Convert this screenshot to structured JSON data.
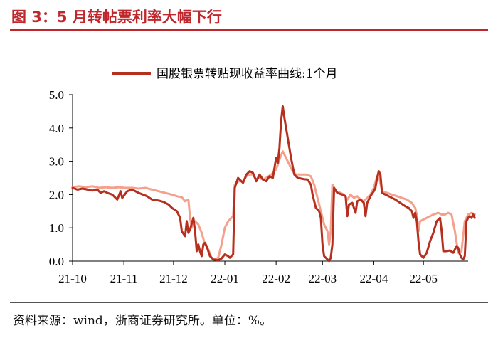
{
  "header": {
    "title": "图 3：5 月转帖票利率大幅下行"
  },
  "footer": {
    "source": "资料来源：wind，浙商证券研究所。单位：%。"
  },
  "chart_data": {
    "type": "line",
    "title": "图 3：5 月转帖票利率大幅下行",
    "xlabel": "",
    "ylabel": "",
    "ylim": [
      0,
      5
    ],
    "yticks": [
      "0.0",
      "1.0",
      "2.0",
      "3.0",
      "4.0",
      "5.0"
    ],
    "xticks": [
      {
        "label": "21-10",
        "t": 0
      },
      {
        "label": "21-11",
        "t": 31
      },
      {
        "label": "21-12",
        "t": 61
      },
      {
        "label": "22-01",
        "t": 92
      },
      {
        "label": "22-02",
        "t": 123
      },
      {
        "label": "22-03",
        "t": 151
      },
      {
        "label": "22-04",
        "t": 182
      },
      {
        "label": "22-05",
        "t": 212
      }
    ],
    "xlim": [
      0,
      239
    ],
    "grid": false,
    "legend_position": "top",
    "series": [
      {
        "name": "国股银票转贴现收益率曲线:1个月",
        "color": "#b5301e",
        "width": 3,
        "points": [
          [
            0,
            2.2
          ],
          [
            3,
            2.15
          ],
          [
            6,
            2.18
          ],
          [
            9,
            2.15
          ],
          [
            12,
            2.12
          ],
          [
            15,
            2.15
          ],
          [
            17,
            2.05
          ],
          [
            19,
            2.1
          ],
          [
            21,
            2.05
          ],
          [
            24,
            2.0
          ],
          [
            27,
            1.85
          ],
          [
            29,
            2.1
          ],
          [
            30,
            1.9
          ],
          [
            33,
            2.1
          ],
          [
            36,
            2.15
          ],
          [
            40,
            2.05
          ],
          [
            45,
            1.95
          ],
          [
            48,
            1.85
          ],
          [
            52,
            1.82
          ],
          [
            55,
            1.78
          ],
          [
            58,
            1.7
          ],
          [
            60,
            1.6
          ],
          [
            63,
            1.5
          ],
          [
            65,
            1.3
          ],
          [
            66,
            0.9
          ],
          [
            68,
            0.75
          ],
          [
            69,
            1.2
          ],
          [
            70,
            0.85
          ],
          [
            71,
            0.95
          ],
          [
            73,
            1.3
          ],
          [
            74,
            0.9
          ],
          [
            75,
            0.3
          ],
          [
            76,
            0.5
          ],
          [
            77,
            0.3
          ],
          [
            78,
            0.15
          ],
          [
            79,
            0.5
          ],
          [
            80,
            0.55
          ],
          [
            81,
            0.45
          ],
          [
            83,
            0.15
          ],
          [
            85,
            0.05
          ],
          [
            88,
            0.03
          ],
          [
            90,
            0.08
          ],
          [
            92,
            0.2
          ],
          [
            94,
            0.15
          ],
          [
            95,
            0.1
          ],
          [
            97,
            0.2
          ],
          [
            98,
            2.2
          ],
          [
            100,
            2.5
          ],
          [
            103,
            2.35
          ],
          [
            105,
            2.6
          ],
          [
            107,
            2.7
          ],
          [
            109,
            2.65
          ],
          [
            111,
            2.4
          ],
          [
            113,
            2.6
          ],
          [
            115,
            2.45
          ],
          [
            117,
            2.4
          ],
          [
            119,
            2.55
          ],
          [
            121,
            2.5
          ],
          [
            123,
            3.1
          ],
          [
            124,
            2.95
          ],
          [
            125,
            3.4
          ],
          [
            126,
            4.2
          ],
          [
            127,
            4.65
          ],
          [
            128,
            4.3
          ],
          [
            130,
            3.7
          ],
          [
            132,
            3.1
          ],
          [
            134,
            2.6
          ],
          [
            136,
            2.5
          ],
          [
            138,
            2.48
          ],
          [
            140,
            2.46
          ],
          [
            142,
            2.45
          ],
          [
            144,
            2.3
          ],
          [
            145,
            2.0
          ],
          [
            147,
            1.6
          ],
          [
            149,
            1.5
          ],
          [
            150,
            1.3
          ],
          [
            151,
            0.5
          ],
          [
            152,
            0.15
          ],
          [
            154,
            0.05
          ],
          [
            155,
            0.0
          ],
          [
            156,
            0.1
          ],
          [
            157,
            0.5
          ],
          [
            158,
            2.2
          ],
          [
            160,
            2.05
          ],
          [
            163,
            2.0
          ],
          [
            165,
            1.95
          ],
          [
            166,
            1.35
          ],
          [
            167,
            1.7
          ],
          [
            169,
            1.75
          ],
          [
            171,
            1.45
          ],
          [
            172,
            1.8
          ],
          [
            174,
            1.85
          ],
          [
            176,
            1.75
          ],
          [
            177,
            1.35
          ],
          [
            178,
            1.75
          ],
          [
            180,
            1.95
          ],
          [
            182,
            2.1
          ],
          [
            183,
            2.2
          ],
          [
            184,
            2.5
          ],
          [
            185,
            2.7
          ],
          [
            186,
            2.6
          ],
          [
            187,
            2.05
          ],
          [
            189,
            2.0
          ],
          [
            191,
            1.95
          ],
          [
            193,
            1.9
          ],
          [
            195,
            1.85
          ],
          [
            198,
            1.75
          ],
          [
            201,
            1.65
          ],
          [
            203,
            1.6
          ],
          [
            205,
            1.5
          ],
          [
            206,
            1.3
          ],
          [
            207,
            1.45
          ],
          [
            208,
            1.2
          ],
          [
            209,
            0.6
          ],
          [
            210,
            0.2
          ],
          [
            212,
            0.1
          ],
          [
            214,
            0.25
          ],
          [
            216,
            0.6
          ],
          [
            218,
            0.85
          ],
          [
            220,
            1.2
          ],
          [
            222,
            1.3
          ],
          [
            223,
            0.9
          ],
          [
            224,
            0.3
          ],
          [
            226,
            0.3
          ],
          [
            228,
            0.32
          ],
          [
            230,
            0.25
          ],
          [
            232,
            0.45
          ],
          [
            233,
            0.4
          ],
          [
            234,
            0.2
          ],
          [
            235,
            0.1
          ],
          [
            236,
            0.05
          ],
          [
            237,
            0.15
          ],
          [
            238,
            1.2
          ],
          [
            239,
            1.3
          ],
          [
            240,
            1.35
          ],
          [
            241,
            1.3
          ],
          [
            242,
            1.4
          ],
          [
            243,
            1.3
          ]
        ]
      },
      {
        "name": "",
        "color": "#f4a08c",
        "width": 3,
        "points": [
          [
            0,
            2.22
          ],
          [
            4,
            2.25
          ],
          [
            8,
            2.22
          ],
          [
            12,
            2.25
          ],
          [
            16,
            2.2
          ],
          [
            20,
            2.22
          ],
          [
            24,
            2.2
          ],
          [
            28,
            2.22
          ],
          [
            32,
            2.2
          ],
          [
            36,
            2.2
          ],
          [
            40,
            2.18
          ],
          [
            44,
            2.2
          ],
          [
            48,
            2.15
          ],
          [
            52,
            2.1
          ],
          [
            56,
            2.05
          ],
          [
            60,
            2.0
          ],
          [
            63,
            1.95
          ],
          [
            66,
            1.92
          ],
          [
            68,
            1.8
          ],
          [
            70,
            1.85
          ],
          [
            71,
            1.3
          ],
          [
            72,
            1.0
          ],
          [
            74,
            1.2
          ],
          [
            76,
            1.1
          ],
          [
            78,
            0.85
          ],
          [
            80,
            0.5
          ],
          [
            82,
            0.35
          ],
          [
            84,
            0.1
          ],
          [
            86,
            0.05
          ],
          [
            88,
            0.1
          ],
          [
            90,
            0.5
          ],
          [
            92,
            1.0
          ],
          [
            94,
            1.2
          ],
          [
            96,
            1.3
          ],
          [
            97,
            1.35
          ],
          [
            98,
            2.3
          ],
          [
            100,
            2.4
          ],
          [
            103,
            2.4
          ],
          [
            105,
            2.55
          ],
          [
            107,
            2.6
          ],
          [
            109,
            2.6
          ],
          [
            111,
            2.45
          ],
          [
            113,
            2.5
          ],
          [
            115,
            2.45
          ],
          [
            117,
            2.5
          ],
          [
            120,
            2.6
          ],
          [
            123,
            2.75
          ],
          [
            125,
            3.05
          ],
          [
            127,
            3.3
          ],
          [
            129,
            3.1
          ],
          [
            131,
            2.9
          ],
          [
            133,
            2.7
          ],
          [
            135,
            2.6
          ],
          [
            138,
            2.6
          ],
          [
            141,
            2.6
          ],
          [
            144,
            2.55
          ],
          [
            146,
            2.3
          ],
          [
            148,
            1.9
          ],
          [
            150,
            1.5
          ],
          [
            152,
            1.1
          ],
          [
            154,
            0.9
          ],
          [
            155,
            0.5
          ],
          [
            156,
            0.9
          ],
          [
            157,
            2.3
          ],
          [
            159,
            2.1
          ],
          [
            162,
            2.05
          ],
          [
            164,
            2.0
          ],
          [
            166,
            1.85
          ],
          [
            168,
            2.0
          ],
          [
            170,
            1.9
          ],
          [
            172,
            1.95
          ],
          [
            174,
            1.85
          ],
          [
            176,
            1.8
          ],
          [
            178,
            1.9
          ],
          [
            180,
            2.0
          ],
          [
            182,
            2.2
          ],
          [
            184,
            2.55
          ],
          [
            185,
            2.6
          ],
          [
            187,
            2.1
          ],
          [
            190,
            2.05
          ],
          [
            193,
            2.0
          ],
          [
            196,
            1.95
          ],
          [
            199,
            1.9
          ],
          [
            202,
            1.85
          ],
          [
            205,
            1.75
          ],
          [
            207,
            1.6
          ],
          [
            208,
            1.4
          ],
          [
            209,
            0.9
          ],
          [
            210,
            1.2
          ],
          [
            212,
            1.25
          ],
          [
            214,
            1.3
          ],
          [
            216,
            1.35
          ],
          [
            218,
            1.4
          ],
          [
            221,
            1.45
          ],
          [
            223,
            1.4
          ],
          [
            225,
            1.4
          ],
          [
            227,
            1.45
          ],
          [
            229,
            1.4
          ],
          [
            231,
            0.9
          ],
          [
            233,
            0.25
          ],
          [
            235,
            0.3
          ],
          [
            237,
            1.2
          ],
          [
            239,
            1.4
          ],
          [
            241,
            1.45
          ],
          [
            243,
            1.4
          ]
        ]
      }
    ]
  }
}
